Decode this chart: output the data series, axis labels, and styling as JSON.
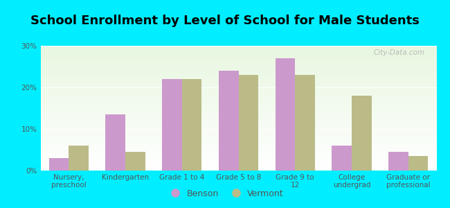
{
  "title": "School Enrollment by Level of School for Male Students",
  "categories": [
    "Nursery,\npreschool",
    "Kindergarten",
    "Grade 1 to 4",
    "Grade 5 to 8",
    "Grade 9 to\n12",
    "College\nundergrad",
    "Graduate or\nprofessional"
  ],
  "benson": [
    3,
    13.5,
    22,
    24,
    27,
    6,
    4.5
  ],
  "vermont": [
    6,
    4.5,
    22,
    23,
    23,
    18,
    3.5
  ],
  "benson_color": "#cc99cc",
  "vermont_color": "#bbbb88",
  "background_color": "#00eeff",
  "plot_bg_top": "#e8f5e0",
  "plot_bg_bottom": "#f8fff4",
  "ylim": [
    0,
    30
  ],
  "yticks": [
    0,
    10,
    20,
    30
  ],
  "ytick_labels": [
    "0%",
    "10%",
    "20%",
    "30%"
  ],
  "legend_benson": "Benson",
  "legend_vermont": "Vermont",
  "bar_width": 0.35,
  "title_fontsize": 13,
  "tick_fontsize": 7.5,
  "legend_fontsize": 9,
  "watermark": "City-Data.com"
}
